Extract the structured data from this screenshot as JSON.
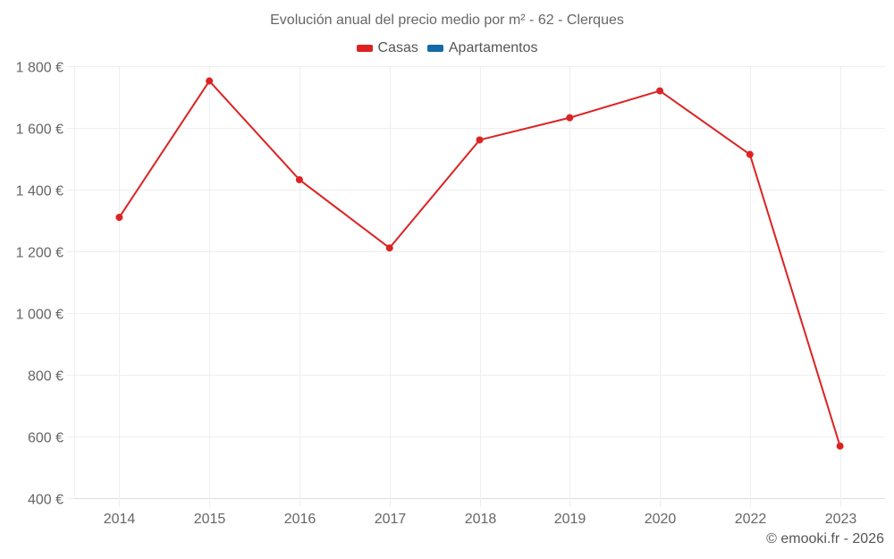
{
  "chart_data": {
    "type": "line",
    "title": "Evolución anual del precio medio por m² - 62 - Clerques",
    "xlabel": "",
    "ylabel": "",
    "categories": [
      "2014",
      "2015",
      "2016",
      "2017",
      "2018",
      "2019",
      "2020",
      "2022",
      "2023"
    ],
    "series": [
      {
        "name": "Casas",
        "color": "#dd2222",
        "values": [
          1310,
          1752,
          1432,
          1211,
          1561,
          1633,
          1720,
          1514,
          569
        ]
      },
      {
        "name": "Apartamentos",
        "color": "#136ba6",
        "values": []
      }
    ],
    "ylim": [
      400,
      1800
    ],
    "yticks": [
      400,
      600,
      800,
      1000,
      1200,
      1400,
      1600,
      1800
    ],
    "ytick_labels": [
      "400 €",
      "600 €",
      "800 €",
      "1 000 €",
      "1 200 €",
      "1 400 €",
      "1 600 €",
      "1 800 €"
    ],
    "grid": true,
    "legend_position": "top"
  },
  "credit": "© emooki.fr - 2026",
  "colors": {
    "grid": "#eeeeee",
    "axis": "#dddddd",
    "text": "#666666"
  }
}
